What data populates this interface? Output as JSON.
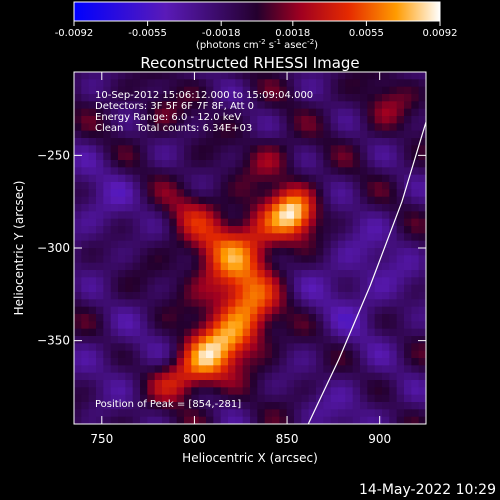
{
  "chart_data": {
    "type": "heatmap",
    "title": "Reconstructed RHESSI Image",
    "xlabel": "Heliocentric X (arcsec)",
    "ylabel": "Heliocentric Y (arcsec)",
    "x_ticks": [
      750,
      800,
      850,
      900
    ],
    "y_ticks": [
      -250,
      -300,
      -350
    ],
    "xlim": [
      735,
      925
    ],
    "ylim": [
      -395,
      -205
    ],
    "colorbar": {
      "min": -0.0092,
      "max": 0.0092,
      "ticks": [
        "-0.0092",
        "-0.0055",
        "-0.0018",
        "0.0018",
        "0.0055",
        "0.0092"
      ],
      "unit_parts": [
        "(photons cm",
        "-2",
        " s",
        "-1",
        " asec",
        "-2",
        ")"
      ]
    },
    "info_lines": [
      "10-Sep-2012 15:06:12.000 to 15:09:04.000",
      "Detectors: 3F 5F 6F 7F 8F, Att 0",
      "Energy Range: 6.0 - 12.0 keV",
      "Clean    Total counts: 6.34E+03"
    ],
    "peak": {
      "text": "Position of Peak = [854,-281]",
      "x": 854,
      "y": -281,
      "value": 0.0092
    },
    "sources": [
      {
        "x": 854,
        "y": -281,
        "amp": 0.0085,
        "sx": 9,
        "sy": 9
      },
      {
        "x": 836,
        "y": -292,
        "amp": 0.004,
        "sx": 12,
        "sy": 12
      },
      {
        "x": 822,
        "y": -320,
        "amp": 0.0048,
        "sx": 14,
        "sy": 16
      },
      {
        "x": 830,
        "y": -336,
        "amp": 0.0044,
        "sx": 10,
        "sy": 12
      },
      {
        "x": 816,
        "y": -351,
        "amp": 0.0058,
        "sx": 11,
        "sy": 9
      },
      {
        "x": 805,
        "y": -363,
        "amp": 0.006,
        "sx": 10,
        "sy": 9
      },
      {
        "x": 790,
        "y": -372,
        "amp": 0.004,
        "sx": 10,
        "sy": 8
      },
      {
        "x": 812,
        "y": -301,
        "amp": 0.003,
        "sx": 13,
        "sy": 12
      },
      {
        "x": 798,
        "y": -281,
        "amp": 0.0026,
        "sx": 12,
        "sy": 11
      },
      {
        "x": 842,
        "y": -253,
        "amp": 0.0024,
        "sx": 10,
        "sy": 9
      },
      {
        "x": 903,
        "y": -223,
        "amp": 0.0024,
        "sx": 9,
        "sy": 9
      },
      {
        "x": 782,
        "y": -226,
        "amp": 0.0018,
        "sx": 8,
        "sy": 8
      },
      {
        "x": 748,
        "y": -278,
        "amp": -0.002,
        "sx": 16,
        "sy": 18
      },
      {
        "x": 890,
        "y": -318,
        "amp": -0.0024,
        "sx": 20,
        "sy": 24
      },
      {
        "x": 760,
        "y": -360,
        "amp": -0.0016,
        "sx": 16,
        "sy": 16
      },
      {
        "x": 885,
        "y": -388,
        "amp": -0.0018,
        "sx": 16,
        "sy": 12
      }
    ],
    "limb_points": [
      [
        925,
        -232
      ],
      [
        912,
        -275
      ],
      [
        895,
        -320
      ],
      [
        878,
        -360
      ],
      [
        860,
        -398
      ]
    ]
  },
  "date_stamp": "14-May-2022 10:29"
}
